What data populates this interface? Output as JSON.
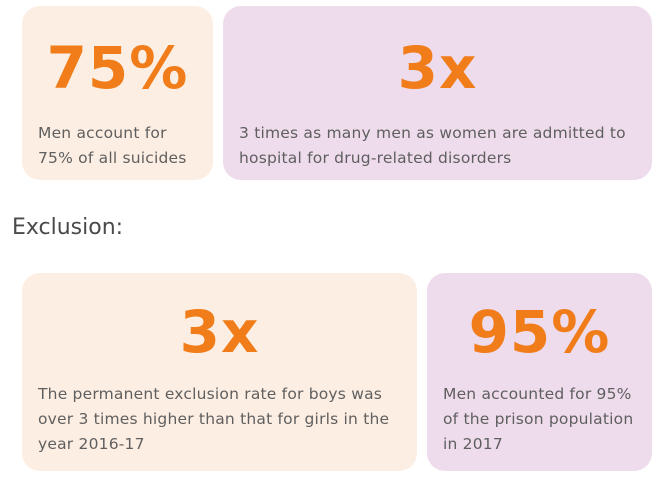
{
  "colors": {
    "accent": "#f07d1a",
    "peach_card": "#fdeee3",
    "lilac_card": "#eedcec",
    "body_text": "#5f5f5f"
  },
  "top_cards": [
    {
      "stat": "75%",
      "description_lines": [
        "Men account for",
        "75% of all suicides"
      ]
    },
    {
      "stat": "3x",
      "description_lines": [
        "3 times as many men as women are admitted to",
        "hospital for drug-related disorders"
      ]
    }
  ],
  "section": {
    "heading": "Exclusion:"
  },
  "bottom_cards": [
    {
      "stat": "3x",
      "description_lines": [
        "The permanent exclusion rate for boys was",
        "over 3 times higher than that for girls in the",
        "year 2016-17"
      ]
    },
    {
      "stat": "95%",
      "description_lines": [
        "Men accounted for 95%",
        "of the prison population",
        "in 2017"
      ]
    }
  ]
}
